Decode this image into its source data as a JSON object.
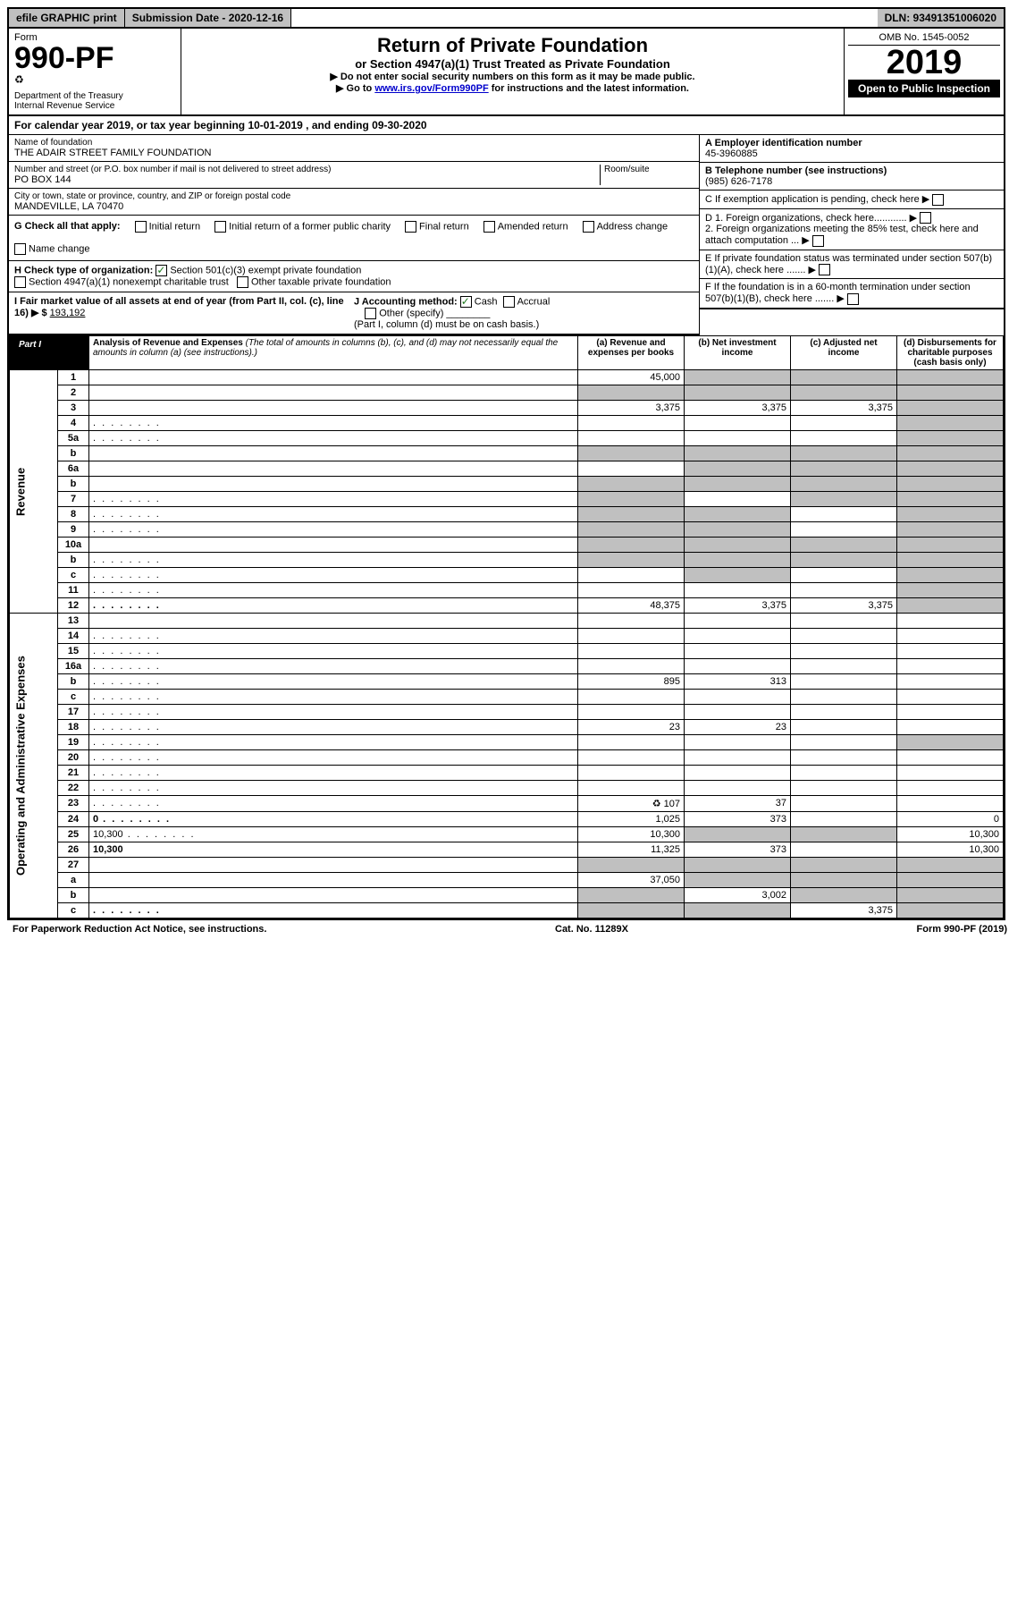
{
  "topbar": {
    "efile": "efile GRAPHIC print",
    "submission": "Submission Date - 2020-12-16",
    "dln": "DLN: 93491351006020"
  },
  "header": {
    "form_label": "Form",
    "form_num": "990-PF",
    "dept": "Department of the Treasury\nInternal Revenue Service",
    "title": "Return of Private Foundation",
    "subtitle": "or Section 4947(a)(1) Trust Treated as Private Foundation",
    "sub1": "▶ Do not enter social security numbers on this form as it may be made public.",
    "sub2_prefix": "▶ Go to ",
    "sub2_link": "www.irs.gov/Form990PF",
    "sub2_suffix": " for instructions and the latest information.",
    "omb": "OMB No. 1545-0052",
    "year": "2019",
    "open": "Open to Public Inspection"
  },
  "calyear": "For calendar year 2019, or tax year beginning 10-01-2019               , and ending 09-30-2020",
  "info": {
    "name_label": "Name of foundation",
    "name": "THE ADAIR STREET FAMILY FOUNDATION",
    "addr_label": "Number and street (or P.O. box number if mail is not delivered to street address)",
    "addr": "PO BOX 144",
    "room_label": "Room/suite",
    "city_label": "City or town, state or province, country, and ZIP or foreign postal code",
    "city": "MANDEVILLE, LA  70470",
    "ein_label": "A Employer identification number",
    "ein": "45-3960885",
    "phone_label": "B Telephone number (see instructions)",
    "phone": "(985) 626-7178",
    "c_label": "C If exemption application is pending, check here",
    "d1_label": "D 1. Foreign organizations, check here............",
    "d2_label": "2. Foreign organizations meeting the 85% test, check here and attach computation ...",
    "e_label": "E  If private foundation status was terminated under section 507(b)(1)(A), check here .......",
    "f_label": "F  If the foundation is in a 60-month termination under section 507(b)(1)(B), check here .......",
    "g_label": "G Check all that apply:",
    "g_initial": "Initial return",
    "g_initial_former": "Initial return of a former public charity",
    "g_final": "Final return",
    "g_amended": "Amended return",
    "g_address": "Address change",
    "g_name": "Name change",
    "h_label": "H Check type of organization:",
    "h_501c3": "Section 501(c)(3) exempt private foundation",
    "h_4947": "Section 4947(a)(1) nonexempt charitable trust",
    "h_other": "Other taxable private foundation",
    "i_label": "I Fair market value of all assets at end of year (from Part II, col. (c), line 16) ▶ $",
    "i_value": "193,192",
    "j_label": "J Accounting method:",
    "j_cash": "Cash",
    "j_accrual": "Accrual",
    "j_other": "Other (specify)",
    "j_note": "(Part I, column (d) must be on cash basis.)"
  },
  "part1": {
    "header": "Part I",
    "title_b": "Analysis of Revenue and Expenses",
    "title_rest": " (The total of amounts in columns (b), (c), and (d) may not necessarily equal the amounts in column (a) (see instructions).)",
    "col_a": "(a)   Revenue and expenses per books",
    "col_b": "(b)   Net investment income",
    "col_c": "(c)   Adjusted net income",
    "col_d": "(d)   Disbursements for charitable purposes (cash basis only)",
    "rev_label": "Revenue",
    "exp_label": "Operating and Administrative Expenses"
  },
  "rows": [
    {
      "n": "1",
      "d": "",
      "a": "45,000",
      "b": "",
      "c": "",
      "sb": true,
      "sc": true,
      "sd": true
    },
    {
      "n": "2",
      "d": "",
      "a": "",
      "b": "",
      "c": "",
      "sa": true,
      "sb": true,
      "sc": true,
      "sd": true,
      "noborder": true,
      "nobold": true
    },
    {
      "n": "3",
      "d": "",
      "a": "3,375",
      "b": "3,375",
      "c": "3,375",
      "sd": true
    },
    {
      "n": "4",
      "d": "",
      "a": "",
      "b": "",
      "c": "",
      "sd": true,
      "dots": true
    },
    {
      "n": "5a",
      "d": "",
      "a": "",
      "b": "",
      "c": "",
      "sd": true,
      "dots": true
    },
    {
      "n": "b",
      "d": "",
      "a": "",
      "b": "",
      "c": "",
      "sa": true,
      "sb": true,
      "sc": true,
      "sd": true
    },
    {
      "n": "6a",
      "d": "",
      "a": "",
      "b": "",
      "c": "",
      "sb": true,
      "sc": true,
      "sd": true
    },
    {
      "n": "b",
      "d": "",
      "a": "",
      "b": "",
      "c": "",
      "sa": true,
      "sb": true,
      "sc": true,
      "sd": true
    },
    {
      "n": "7",
      "d": "",
      "a": "",
      "b": "",
      "c": "",
      "sa": true,
      "sc": true,
      "sd": true,
      "dots": true
    },
    {
      "n": "8",
      "d": "",
      "a": "",
      "b": "",
      "c": "",
      "sa": true,
      "sb": true,
      "sd": true,
      "dots": true
    },
    {
      "n": "9",
      "d": "",
      "a": "",
      "b": "",
      "c": "",
      "sa": true,
      "sb": true,
      "sd": true,
      "dots": true
    },
    {
      "n": "10a",
      "d": "",
      "a": "",
      "b": "",
      "c": "",
      "sa": true,
      "sb": true,
      "sc": true,
      "sd": true
    },
    {
      "n": "b",
      "d": "",
      "a": "",
      "b": "",
      "c": "",
      "sa": true,
      "sb": true,
      "sc": true,
      "sd": true,
      "dots": true
    },
    {
      "n": "c",
      "d": "",
      "a": "",
      "b": "",
      "c": "",
      "sb": true,
      "sd": true,
      "dots": true
    },
    {
      "n": "11",
      "d": "",
      "a": "",
      "b": "",
      "c": "",
      "sd": true,
      "dots": true
    },
    {
      "n": "12",
      "d": "",
      "a": "48,375",
      "b": "3,375",
      "c": "3,375",
      "sd": true,
      "bold": true,
      "dots": true
    }
  ],
  "exp_rows": [
    {
      "n": "13",
      "d": "",
      "a": "",
      "b": "",
      "c": ""
    },
    {
      "n": "14",
      "d": "",
      "a": "",
      "b": "",
      "c": "",
      "dots": true
    },
    {
      "n": "15",
      "d": "",
      "a": "",
      "b": "",
      "c": "",
      "dots": true
    },
    {
      "n": "16a",
      "d": "",
      "a": "",
      "b": "",
      "c": "",
      "dots": true
    },
    {
      "n": "b",
      "d": "",
      "a": "895",
      "b": "313",
      "c": "",
      "dots": true
    },
    {
      "n": "c",
      "d": "",
      "a": "",
      "b": "",
      "c": "",
      "dots": true
    },
    {
      "n": "17",
      "d": "",
      "a": "",
      "b": "",
      "c": "",
      "dots": true
    },
    {
      "n": "18",
      "d": "",
      "a": "23",
      "b": "23",
      "c": "",
      "dots": true
    },
    {
      "n": "19",
      "d": "",
      "a": "",
      "b": "",
      "c": "",
      "sd": true,
      "dots": true
    },
    {
      "n": "20",
      "d": "",
      "a": "",
      "b": "",
      "c": "",
      "dots": true
    },
    {
      "n": "21",
      "d": "",
      "a": "",
      "b": "",
      "c": "",
      "dots": true
    },
    {
      "n": "22",
      "d": "",
      "a": "",
      "b": "",
      "c": "",
      "dots": true
    },
    {
      "n": "23",
      "d": "",
      "a": "107",
      "b": "37",
      "c": "",
      "dots": true,
      "icon": true
    },
    {
      "n": "24",
      "d": "0",
      "a": "1,025",
      "b": "373",
      "c": "",
      "bold": true,
      "dots": true
    },
    {
      "n": "25",
      "d": "10,300",
      "a": "10,300",
      "b": "",
      "c": "",
      "sb": true,
      "sc": true,
      "dots": true
    },
    {
      "n": "26",
      "d": "10,300",
      "a": "11,325",
      "b": "373",
      "c": "",
      "bold": true
    },
    {
      "n": "27",
      "d": "",
      "a": "",
      "b": "",
      "c": "",
      "sa": true,
      "sb": true,
      "sc": true,
      "sd": true
    },
    {
      "n": "a",
      "d": "",
      "a": "37,050",
      "b": "",
      "c": "",
      "sb": true,
      "sc": true,
      "sd": true,
      "bold": true
    },
    {
      "n": "b",
      "d": "",
      "a": "",
      "b": "3,002",
      "c": "",
      "sa": true,
      "sc": true,
      "sd": true,
      "bold": true
    },
    {
      "n": "c",
      "d": "",
      "a": "",
      "b": "",
      "c": "3,375",
      "sa": true,
      "sb": true,
      "sd": true,
      "bold": true,
      "dots": true
    }
  ],
  "footer": {
    "left": "For Paperwork Reduction Act Notice, see instructions.",
    "mid": "Cat. No. 11289X",
    "right": "Form 990-PF (2019)"
  }
}
